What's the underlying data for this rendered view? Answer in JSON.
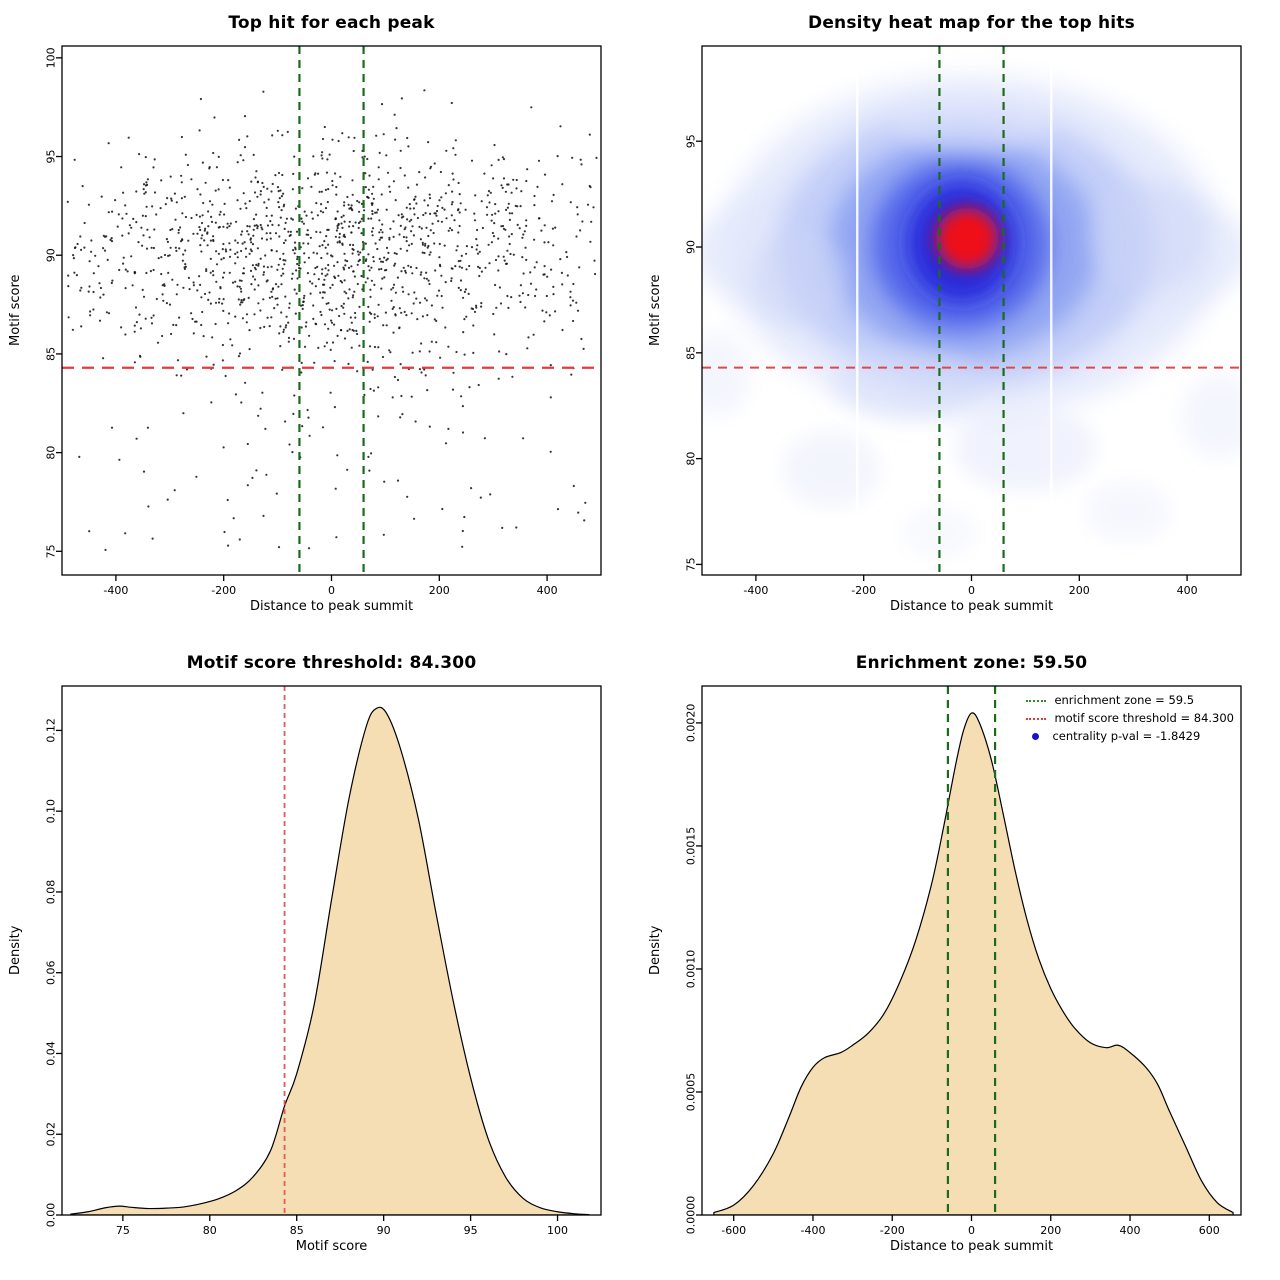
{
  "chart_data": [
    {
      "id": "top_hit_scatter",
      "type": "scatter",
      "title": "Top hit for each peak",
      "xlabel": "Distance to peak summit",
      "ylabel": "Motif score",
      "xlim": [
        -500,
        500
      ],
      "ylim": [
        73.8,
        100.6
      ],
      "xticks": [
        -400,
        -200,
        0,
        200,
        400
      ],
      "xtick_labels": [
        "-400",
        "-200",
        "0",
        "200",
        "400"
      ],
      "yticks": [
        75,
        80,
        85,
        90,
        95,
        100
      ],
      "ytick_labels": [
        "75",
        "80",
        "85",
        "90",
        "95",
        "100"
      ],
      "point_color": "#111111",
      "points_model": {
        "n": 1450,
        "seed": 20,
        "x_center": 0,
        "x_sigma": 185,
        "x_uniform_frac": 0.4,
        "y_mean": 90.1,
        "y_sigma": 2.8,
        "y_low_outlier_frac": 0.055,
        "y_low_outlier_range": [
          75.0,
          84.5
        ]
      },
      "vlines": {
        "x": [
          -59.5,
          59.5
        ],
        "color": "#1b6b1b",
        "dash": "8,6",
        "width": 2.2
      },
      "hlines": {
        "y": [
          84.3
        ],
        "color": "#e03c3c",
        "dash": "12,8",
        "width": 2.2
      }
    },
    {
      "id": "density_heatmap",
      "type": "heatmap",
      "title": "Density heat map for the top hits",
      "xlabel": "Distance to peak summit",
      "ylabel": "Motif score",
      "xlim": [
        -500,
        500
      ],
      "ylim": [
        74.5,
        99.5
      ],
      "xticks": [
        -400,
        -200,
        0,
        200,
        400
      ],
      "xtick_labels": [
        "-400",
        "-200",
        "0",
        "200",
        "400"
      ],
      "yticks": [
        75,
        80,
        85,
        90,
        95
      ],
      "ytick_labels": [
        "75",
        "80",
        "85",
        "90",
        "95"
      ],
      "blobs": [
        [
          0,
          89.8,
          520,
          4.2,
          "#dfe6fb",
          0.7,
          12
        ],
        [
          0,
          90,
          460,
          8.0,
          "#e2e8fc",
          0.85,
          14
        ],
        [
          -10,
          90,
          350,
          6.6,
          "#bcc8f7",
          0.8,
          13
        ],
        [
          -15,
          90,
          250,
          5.2,
          "#8298f0",
          0.75,
          12
        ],
        [
          -20,
          90.1,
          165,
          4.0,
          "#4458e8",
          0.8,
          11
        ],
        [
          -18,
          90.2,
          100,
          2.8,
          "#2222d8",
          0.85,
          10
        ],
        [
          -8,
          90.4,
          58,
          1.45,
          "#fa0f0f",
          0.95,
          8
        ],
        [
          -320,
          88.5,
          90,
          2.2,
          "#ccd6f8",
          0.5,
          10
        ],
        [
          330,
          90.5,
          110,
          2.6,
          "#ccd6f8",
          0.5,
          10
        ],
        [
          -120,
          83.5,
          140,
          1.6,
          "#d4dcf9",
          0.5,
          10
        ],
        [
          100,
          80.5,
          130,
          2.0,
          "#dde3fa",
          0.45,
          10
        ],
        [
          -260,
          79.5,
          90,
          1.8,
          "#e2e7fb",
          0.4,
          10
        ],
        [
          290,
          77.5,
          80,
          1.4,
          "#e8ecfc",
          0.4,
          10
        ],
        [
          -60,
          76.5,
          70,
          1.2,
          "#eceffd",
          0.35,
          10
        ],
        [
          460,
          82,
          70,
          2.0,
          "#e4e9fc",
          0.4,
          10
        ],
        [
          -470,
          84,
          60,
          2.0,
          "#e4e9fc",
          0.4,
          10
        ],
        [
          0,
          96,
          150,
          1.5,
          "#e8ecfc",
          0.4,
          10
        ]
      ],
      "white_lines_x": [
        -212,
        148
      ],
      "vlines": {
        "x": [
          -59.5,
          59.5
        ],
        "color": "#1b6b1b",
        "dash": "8,6",
        "width": 2.2
      },
      "hlines": {
        "y": [
          84.3
        ],
        "color": "#e04848",
        "dash": "9,7",
        "width": 2
      }
    },
    {
      "id": "motif_score_density",
      "type": "density",
      "title": "Motif score threshold: 84.300",
      "xlabel": "Motif score",
      "ylabel": "Density",
      "xlim": [
        71.5,
        102.5
      ],
      "ylim": [
        0,
        0.131
      ],
      "xticks": [
        75,
        80,
        85,
        90,
        95,
        100
      ],
      "xtick_labels": [
        "75",
        "80",
        "85",
        "90",
        "95",
        "100"
      ],
      "yticks": [
        0,
        0.02,
        0.04,
        0.06,
        0.08,
        0.1,
        0.12
      ],
      "ytick_labels": [
        "0.00",
        "0.02",
        "0.04",
        "0.06",
        "0.08",
        "0.10",
        "0.12"
      ],
      "fill": "#f5deb3",
      "curve": [
        [
          72,
          0.0002
        ],
        [
          73,
          0.0008
        ],
        [
          74,
          0.0018
        ],
        [
          74.8,
          0.0022
        ],
        [
          75.5,
          0.0019
        ],
        [
          76.5,
          0.0016
        ],
        [
          77.5,
          0.0017
        ],
        [
          78.5,
          0.002
        ],
        [
          79.5,
          0.0028
        ],
        [
          80.5,
          0.004
        ],
        [
          81.5,
          0.006
        ],
        [
          82.5,
          0.0095
        ],
        [
          83.5,
          0.016
        ],
        [
          84.3,
          0.027
        ],
        [
          85,
          0.035
        ],
        [
          86,
          0.052
        ],
        [
          87,
          0.078
        ],
        [
          88,
          0.103
        ],
        [
          89,
          0.121
        ],
        [
          89.6,
          0.1255
        ],
        [
          90.2,
          0.124
        ],
        [
          91,
          0.115
        ],
        [
          92,
          0.098
        ],
        [
          93,
          0.075
        ],
        [
          94,
          0.053
        ],
        [
          95,
          0.034
        ],
        [
          96,
          0.019
        ],
        [
          97,
          0.0095
        ],
        [
          98,
          0.0042
        ],
        [
          99,
          0.0018
        ],
        [
          100,
          0.0008
        ],
        [
          101,
          0.0003
        ],
        [
          101.8,
          0.0001
        ]
      ],
      "vlines": {
        "x": [
          84.3
        ],
        "color": "#e05c5c",
        "dash": "5,4",
        "width": 1.8
      }
    },
    {
      "id": "summit_distance_density",
      "type": "density",
      "title": "Enrichment zone: 59.50",
      "xlabel": "Distance to peak summit",
      "ylabel": "Density",
      "xlim": [
        -680,
        680
      ],
      "ylim": [
        0,
        0.00215
      ],
      "xticks": [
        -600,
        -400,
        -200,
        0,
        200,
        400,
        600
      ],
      "xtick_labels": [
        "-600",
        "-400",
        "-200",
        "0",
        "200",
        "400",
        "600"
      ],
      "yticks": [
        0,
        0.0005,
        0.001,
        0.0015,
        0.002
      ],
      "ytick_labels": [
        "0.0000",
        "0.0005",
        "0.0010",
        "0.0015",
        "0.0020"
      ],
      "fill": "#f5deb3",
      "curve": [
        [
          -650,
          1e-05
        ],
        [
          -600,
          4e-05
        ],
        [
          -550,
          0.00012
        ],
        [
          -500,
          0.00025
        ],
        [
          -460,
          0.0004
        ],
        [
          -430,
          0.00052
        ],
        [
          -400,
          0.0006
        ],
        [
          -370,
          0.00064
        ],
        [
          -330,
          0.00066
        ],
        [
          -300,
          0.00069
        ],
        [
          -260,
          0.00074
        ],
        [
          -220,
          0.00082
        ],
        [
          -180,
          0.00095
        ],
        [
          -140,
          0.00112
        ],
        [
          -100,
          0.00135
        ],
        [
          -70,
          0.00158
        ],
        [
          -40,
          0.00183
        ],
        [
          -20,
          0.00197
        ],
        [
          0,
          0.00204
        ],
        [
          20,
          0.002
        ],
        [
          50,
          0.00185
        ],
        [
          80,
          0.00163
        ],
        [
          110,
          0.0014
        ],
        [
          140,
          0.0012
        ],
        [
          170,
          0.00104
        ],
        [
          200,
          0.00092
        ],
        [
          230,
          0.00083
        ],
        [
          260,
          0.00076
        ],
        [
          300,
          0.0007
        ],
        [
          340,
          0.00068
        ],
        [
          370,
          0.00069
        ],
        [
          400,
          0.00066
        ],
        [
          440,
          0.0006
        ],
        [
          470,
          0.00053
        ],
        [
          500,
          0.00042
        ],
        [
          540,
          0.00028
        ],
        [
          580,
          0.00014
        ],
        [
          620,
          5e-05
        ],
        [
          660,
          1e-05
        ]
      ],
      "vlines": {
        "x": [
          -59.5,
          59.5
        ],
        "color": "#1b6b1b",
        "dash": "8,6",
        "width": 2.2
      },
      "legend": {
        "items": [
          {
            "label": "enrichment zone = 59.5",
            "marker": "dotted-line",
            "color": "#2e8b2e"
          },
          {
            "label": "motif score threshold = 84.300",
            "marker": "dotted-line",
            "color": "#e03c3c"
          },
          {
            "label": "centrality p-val = -1.8429",
            "marker": "dot",
            "color": "#1414c8"
          }
        ]
      }
    }
  ]
}
